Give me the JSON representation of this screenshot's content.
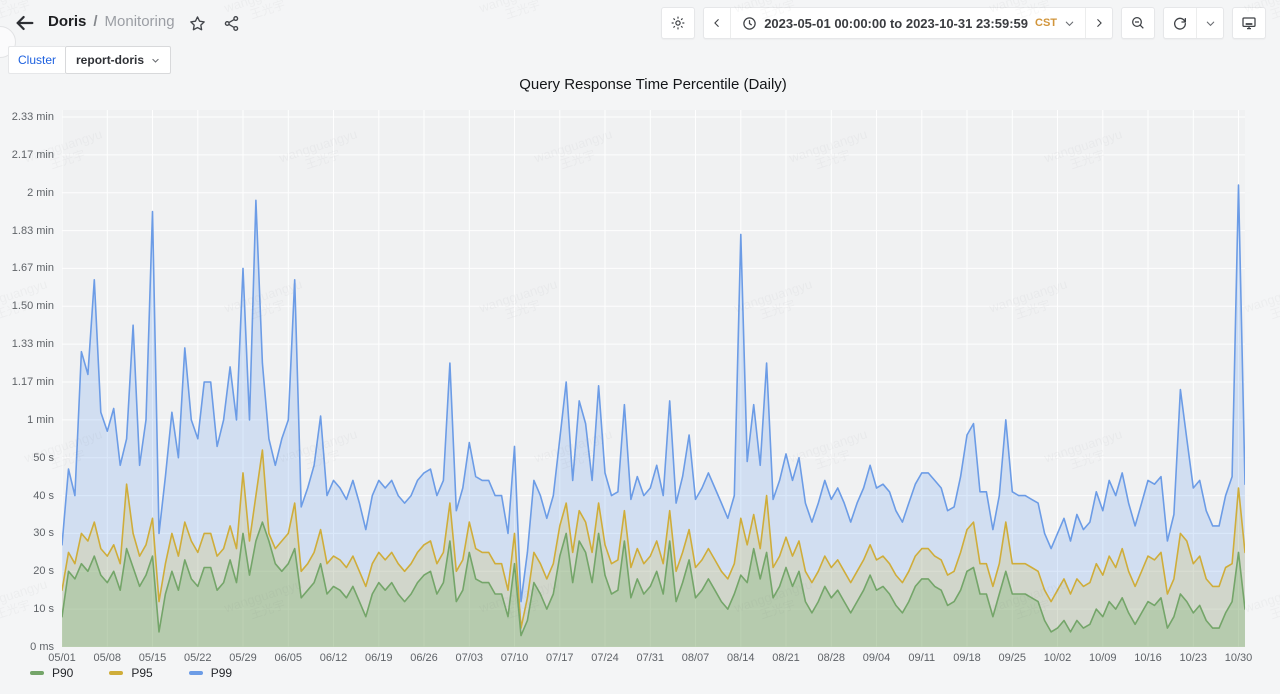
{
  "header": {
    "breadcrumb": {
      "folder": "Doris",
      "separator": "/",
      "dashboard": "Monitoring"
    },
    "toolbar": {
      "time_range": "2023-05-01 00:00:00 to 2023-10-31 23:59:59",
      "timezone": "CST"
    }
  },
  "variables": {
    "cluster_label": "Cluster",
    "cluster_value": "report-doris"
  },
  "panel": {
    "title": "Query Response Time Percentile (Daily)"
  },
  "watermark": {
    "line1": "wangguangyu",
    "line2": "王光宇"
  },
  "colors": {
    "link_blue": "#1f62e0",
    "timezone_amber": "#d1953b",
    "p90_line": "#74a569",
    "p90_fill": "rgba(86,166,75,0.22)",
    "p95_line": "#cfad3a",
    "p95_fill": "rgba(212,177,6,0.16)",
    "p99_line": "#6c9ce6",
    "p99_fill": "rgba(87,148,242,0.20)"
  },
  "chart_data": {
    "type": "area",
    "title": "Query Response Time Percentile (Daily)",
    "x_start_date": "2023-05-01",
    "x_end_date": "2023-10-31",
    "x_unit": "day",
    "y_unit": "seconds",
    "y_range": [
      0,
      140
    ],
    "grid": true,
    "legend_position": "bottom-left",
    "x_tick_labels": [
      "05/01",
      "05/08",
      "05/15",
      "05/22",
      "05/29",
      "06/05",
      "06/12",
      "06/19",
      "06/26",
      "07/03",
      "07/10",
      "07/17",
      "07/24",
      "07/31",
      "08/07",
      "08/14",
      "08/21",
      "08/28",
      "09/04",
      "09/11",
      "09/18",
      "09/25",
      "10/02",
      "10/09",
      "10/16",
      "10/23",
      "10/30"
    ],
    "x_tick_day_indices": [
      0,
      7,
      14,
      21,
      28,
      35,
      42,
      49,
      56,
      63,
      70,
      77,
      84,
      91,
      98,
      105,
      112,
      119,
      126,
      133,
      140,
      147,
      154,
      161,
      168,
      175,
      182
    ],
    "y_ticks": [
      {
        "label": "0 ms",
        "seconds": 0
      },
      {
        "label": "10 s",
        "seconds": 10
      },
      {
        "label": "20 s",
        "seconds": 20
      },
      {
        "label": "30 s",
        "seconds": 30
      },
      {
        "label": "40 s",
        "seconds": 40
      },
      {
        "label": "50 s",
        "seconds": 50
      },
      {
        "label": "1 min",
        "seconds": 60
      },
      {
        "label": "1.17 min",
        "seconds": 70
      },
      {
        "label": "1.33 min",
        "seconds": 80
      },
      {
        "label": "1.50 min",
        "seconds": 90
      },
      {
        "label": "1.67 min",
        "seconds": 100
      },
      {
        "label": "1.83 min",
        "seconds": 110
      },
      {
        "label": "2 min",
        "seconds": 120
      },
      {
        "label": "2.17 min",
        "seconds": 130
      },
      {
        "label": "2.33 min",
        "seconds": 140
      }
    ],
    "series": [
      {
        "name": "P90",
        "values_seconds": [
          8,
          20,
          18,
          22,
          20,
          24,
          19,
          17,
          20,
          15,
          26,
          21,
          16,
          19,
          24,
          4,
          14,
          20,
          15,
          23,
          18,
          16,
          21,
          21,
          15,
          17,
          23,
          17,
          30,
          19,
          28,
          33,
          28,
          22,
          20,
          22,
          26,
          13,
          15,
          17,
          22,
          14,
          16,
          15,
          13,
          16,
          12,
          8,
          14,
          17,
          15,
          17,
          14,
          12,
          14,
          17,
          19,
          20,
          14,
          17,
          28,
          12,
          15,
          25,
          18,
          17,
          17,
          14,
          14,
          8,
          22,
          3,
          7,
          17,
          14,
          10,
          14,
          24,
          30,
          17,
          28,
          25,
          17,
          30,
          19,
          14,
          15,
          28,
          13,
          18,
          14,
          16,
          20,
          14,
          28,
          12,
          17,
          23,
          13,
          15,
          18,
          15,
          12,
          10,
          14,
          19,
          17,
          26,
          18,
          25,
          13,
          16,
          21,
          16,
          20,
          12,
          9,
          12,
          16,
          13,
          15,
          12,
          9,
          12,
          15,
          19,
          15,
          16,
          14,
          11,
          9,
          12,
          16,
          18,
          18,
          16,
          15,
          11,
          12,
          15,
          20,
          21,
          14,
          14,
          8,
          14,
          20,
          14,
          14,
          14,
          13,
          12,
          7,
          4,
          5,
          7,
          4,
          7,
          5,
          6,
          10,
          8,
          12,
          10,
          13,
          9,
          6,
          9,
          12,
          11,
          13,
          5,
          8,
          14,
          12,
          9,
          11,
          7,
          5,
          5,
          9,
          12,
          25,
          10
        ]
      },
      {
        "name": "P95",
        "values_seconds": [
          15,
          25,
          22,
          30,
          28,
          33,
          26,
          24,
          27,
          22,
          43,
          30,
          24,
          27,
          34,
          12,
          22,
          30,
          24,
          33,
          28,
          25,
          30,
          30,
          24,
          26,
          32,
          26,
          46,
          28,
          40,
          52,
          30,
          26,
          28,
          30,
          38,
          20,
          22,
          25,
          31,
          22,
          24,
          23,
          21,
          24,
          20,
          16,
          22,
          25,
          23,
          25,
          22,
          20,
          22,
          25,
          27,
          28,
          22,
          25,
          38,
          20,
          23,
          33,
          26,
          25,
          25,
          22,
          22,
          15,
          30,
          5,
          13,
          25,
          22,
          18,
          22,
          32,
          38,
          25,
          36,
          33,
          25,
          38,
          27,
          22,
          23,
          36,
          21,
          26,
          22,
          24,
          28,
          22,
          36,
          20,
          25,
          31,
          21,
          23,
          26,
          23,
          20,
          18,
          22,
          34,
          27,
          35,
          26,
          40,
          21,
          24,
          29,
          24,
          28,
          20,
          17,
          20,
          24,
          21,
          23,
          20,
          17,
          20,
          23,
          27,
          23,
          24,
          22,
          19,
          17,
          20,
          24,
          26,
          26,
          24,
          23,
          19,
          20,
          25,
          31,
          33,
          22,
          22,
          16,
          22,
          33,
          22,
          22,
          22,
          21,
          20,
          15,
          12,
          15,
          18,
          14,
          18,
          16,
          17,
          22,
          19,
          24,
          21,
          26,
          20,
          16,
          20,
          24,
          23,
          25,
          14,
          18,
          30,
          28,
          22,
          24,
          18,
          16,
          16,
          21,
          22,
          42,
          25
        ]
      },
      {
        "name": "P99",
        "values_seconds": [
          27,
          47,
          40,
          78,
          72,
          97,
          62,
          57,
          63,
          48,
          55,
          85,
          48,
          60,
          115,
          30,
          45,
          62,
          50,
          79,
          60,
          55,
          70,
          70,
          53,
          60,
          74,
          60,
          100,
          60,
          118,
          75,
          55,
          48,
          55,
          60,
          97,
          37,
          42,
          48,
          61,
          40,
          44,
          42,
          39,
          44,
          38,
          31,
          40,
          44,
          42,
          44,
          40,
          38,
          40,
          44,
          46,
          47,
          40,
          44,
          75,
          36,
          42,
          54,
          45,
          44,
          44,
          40,
          40,
          30,
          53,
          12,
          25,
          44,
          40,
          34,
          40,
          55,
          70,
          44,
          65,
          59,
          44,
          69,
          46,
          40,
          41,
          64,
          39,
          45,
          40,
          42,
          48,
          40,
          65,
          38,
          45,
          56,
          39,
          42,
          46,
          42,
          38,
          34,
          40,
          109,
          49,
          64,
          48,
          75,
          39,
          44,
          51,
          44,
          50,
          38,
          33,
          38,
          44,
          39,
          42,
          38,
          33,
          38,
          42,
          48,
          42,
          43,
          41,
          36,
          33,
          38,
          43,
          46,
          46,
          44,
          42,
          36,
          37,
          45,
          56,
          59,
          41,
          41,
          31,
          40,
          60,
          41,
          40,
          40,
          39,
          38,
          30,
          26,
          30,
          34,
          28,
          35,
          31,
          33,
          41,
          36,
          44,
          40,
          46,
          38,
          32,
          38,
          44,
          43,
          45,
          28,
          35,
          68,
          55,
          42,
          44,
          36,
          32,
          32,
          40,
          45,
          122,
          43
        ]
      }
    ]
  }
}
